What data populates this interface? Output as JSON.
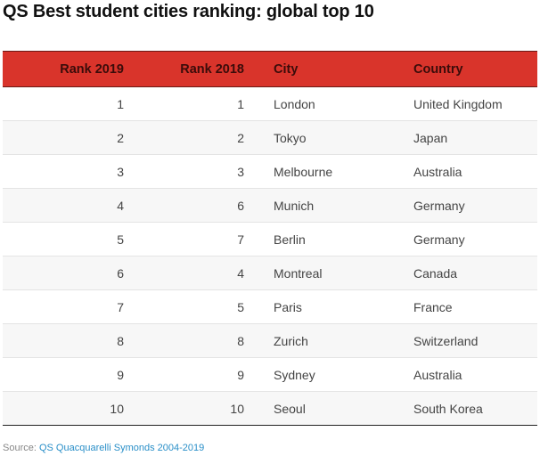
{
  "title": "QS Best student cities ranking: global top 10",
  "chart_data": {
    "type": "table",
    "columns": [
      "Rank 2019",
      "Rank 2018",
      "City",
      "Country"
    ],
    "rows": [
      [
        "1",
        "1",
        "London",
        "United Kingdom"
      ],
      [
        "2",
        "2",
        "Tokyo",
        "Japan"
      ],
      [
        "3",
        "3",
        "Melbourne",
        "Australia"
      ],
      [
        "4",
        "6",
        "Munich",
        "Germany"
      ],
      [
        "5",
        "7",
        "Berlin",
        "Germany"
      ],
      [
        "6",
        "4",
        "Montreal",
        "Canada"
      ],
      [
        "7",
        "5",
        "Paris",
        "France"
      ],
      [
        "8",
        "8",
        "Zurich",
        "Switzerland"
      ],
      [
        "9",
        "9",
        "Sydney",
        "Australia"
      ],
      [
        "10",
        "10",
        "Seoul",
        "South Korea"
      ]
    ],
    "header_color": "#d9342b"
  },
  "source": {
    "label": "Source:",
    "link": "QS Quacquarelli Symonds 2004-2019"
  }
}
